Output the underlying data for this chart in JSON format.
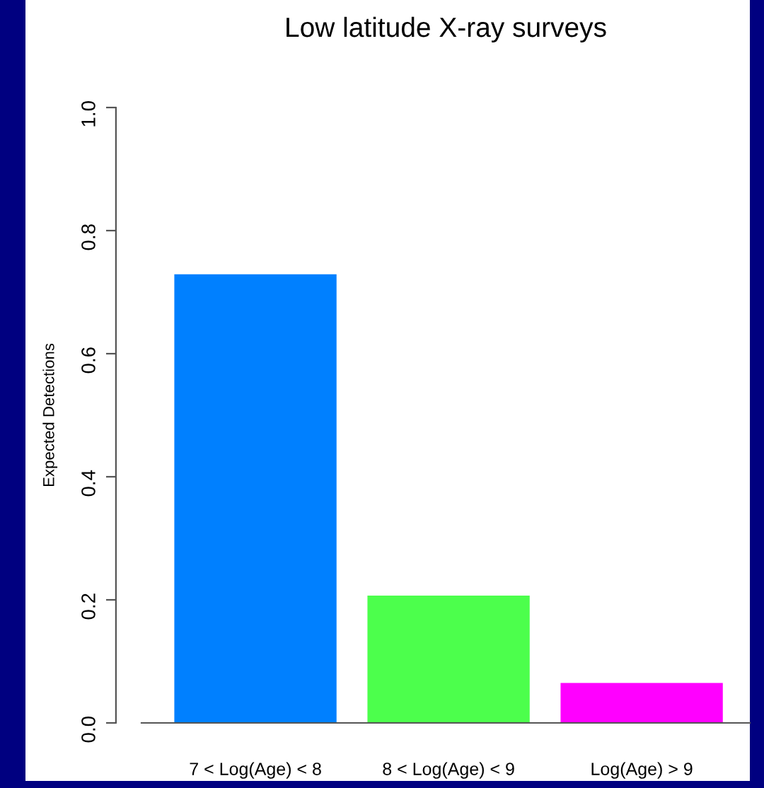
{
  "chart_data": {
    "type": "bar",
    "title": "Low latitude X-ray surveys",
    "ylabel": "Expected Detections",
    "categories": [
      "7 < Log(Age) < 8",
      "8 < Log(Age) < 9",
      "Log(Age) > 9"
    ],
    "values": [
      0.729,
      0.207,
      0.065
    ],
    "colors": [
      "#0080ff",
      "#4cff4c",
      "#ff00ff"
    ],
    "ylim": [
      0,
      1.0
    ],
    "yticks": [
      {
        "value": 0,
        "label": "0.0"
      },
      0.2,
      0.4,
      0.6,
      0.8,
      {
        "value": 1,
        "label": "1.0"
      }
    ],
    "grid": false,
    "legend": false
  }
}
